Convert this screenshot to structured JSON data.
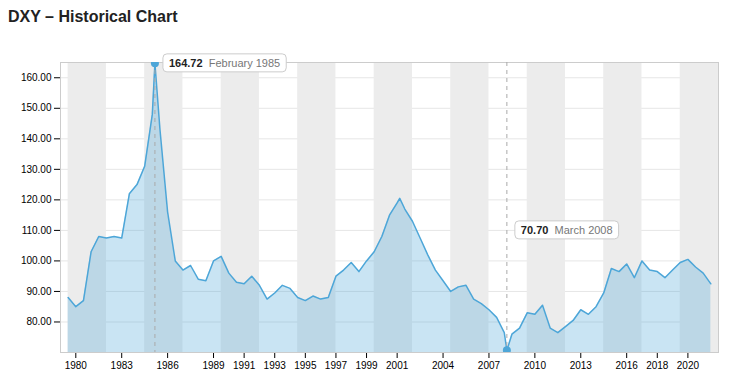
{
  "chart_data": {
    "type": "area",
    "title": "DXY – Historical Chart",
    "x": [
      1979.5,
      1980.0,
      1980.5,
      1981.0,
      1981.5,
      1982.0,
      1982.5,
      1983.0,
      1983.5,
      1984.0,
      1984.5,
      1985.0,
      1985.17,
      1985.5,
      1986.0,
      1986.5,
      1987.0,
      1987.5,
      1988.0,
      1988.5,
      1989.0,
      1989.5,
      1990.0,
      1990.5,
      1991.0,
      1991.5,
      1992.0,
      1992.5,
      1993.0,
      1993.5,
      1994.0,
      1994.5,
      1995.0,
      1995.5,
      1996.0,
      1996.5,
      1997.0,
      1997.5,
      1998.0,
      1998.5,
      1999.0,
      1999.5,
      2000.0,
      2000.5,
      2001.0,
      2001.17,
      2001.5,
      2002.0,
      2002.5,
      2003.0,
      2003.5,
      2004.0,
      2004.5,
      2005.0,
      2005.5,
      2006.0,
      2006.5,
      2007.0,
      2007.5,
      2008.0,
      2008.17,
      2008.5,
      2009.0,
      2009.5,
      2010.0,
      2010.5,
      2011.0,
      2011.5,
      2012.0,
      2012.5,
      2013.0,
      2013.5,
      2014.0,
      2014.5,
      2015.0,
      2015.5,
      2016.0,
      2016.5,
      2017.0,
      2017.5,
      2018.0,
      2018.5,
      2019.0,
      2019.5,
      2020.0,
      2020.5,
      2021.0,
      2021.5
    ],
    "values": [
      88.0,
      85.0,
      87.0,
      103.0,
      108.0,
      107.5,
      108.0,
      107.5,
      122.0,
      125.0,
      131.0,
      148.0,
      164.72,
      143.0,
      116.0,
      100.0,
      97.0,
      98.5,
      94.0,
      93.5,
      100.0,
      101.5,
      96.0,
      93.0,
      92.5,
      95.0,
      92.0,
      87.5,
      89.5,
      92.0,
      91.0,
      88.0,
      87.0,
      88.5,
      87.5,
      88.0,
      95.0,
      97.0,
      99.5,
      96.5,
      100.0,
      103.0,
      108.0,
      115.0,
      119.0,
      120.5,
      117.0,
      113.0,
      107.5,
      102.0,
      97.0,
      93.5,
      90.0,
      91.5,
      92.0,
      87.5,
      86.0,
      84.0,
      81.5,
      76.5,
      70.7,
      76.0,
      78.0,
      83.0,
      82.5,
      85.5,
      78.0,
      76.5,
      78.5,
      80.5,
      84.0,
      82.5,
      85.0,
      89.5,
      97.5,
      96.5,
      99.0,
      94.5,
      100.0,
      97.0,
      96.5,
      94.5,
      97.0,
      99.5,
      100.5,
      98.0,
      96.0,
      92.5
    ],
    "color": "#4DA6D8",
    "xlim": [
      1979.0,
      2022.0
    ],
    "xticks": [
      1980,
      1983,
      1986,
      1989,
      1991,
      1993,
      1995,
      1997,
      1999,
      2001,
      2004,
      2007,
      2010,
      2013,
      2016,
      2018,
      2020
    ],
    "ylim": [
      70,
      165
    ],
    "yticks": [
      {
        "value": 80,
        "label": "80.00"
      },
      {
        "value": 90,
        "label": "90.00"
      },
      {
        "value": 100,
        "label": "100.00"
      },
      {
        "value": 110,
        "label": "110.00"
      },
      {
        "value": 120,
        "label": "120.00"
      },
      {
        "value": 130,
        "label": "130.00"
      },
      {
        "value": 140,
        "label": "140.00"
      },
      {
        "value": 150,
        "label": "150.00"
      },
      {
        "value": 160,
        "label": "160.00"
      }
    ],
    "grid": true,
    "bands": [
      [
        1979.5,
        1982.0
      ],
      [
        1984.5,
        1987.0
      ],
      [
        1989.5,
        1992.0
      ],
      [
        1994.5,
        1997.0
      ],
      [
        1999.5,
        2002.0
      ],
      [
        2004.5,
        2007.0
      ],
      [
        2009.5,
        2012.0
      ],
      [
        2014.5,
        2017.0
      ],
      [
        2019.5,
        2022.0
      ]
    ],
    "annotations": [
      {
        "x": 1985.17,
        "y": 164.72,
        "value": "164.72",
        "label": "February 1985"
      },
      {
        "x": 2008.17,
        "y": 70.7,
        "value": "70.70",
        "label": "March 2008"
      }
    ]
  }
}
